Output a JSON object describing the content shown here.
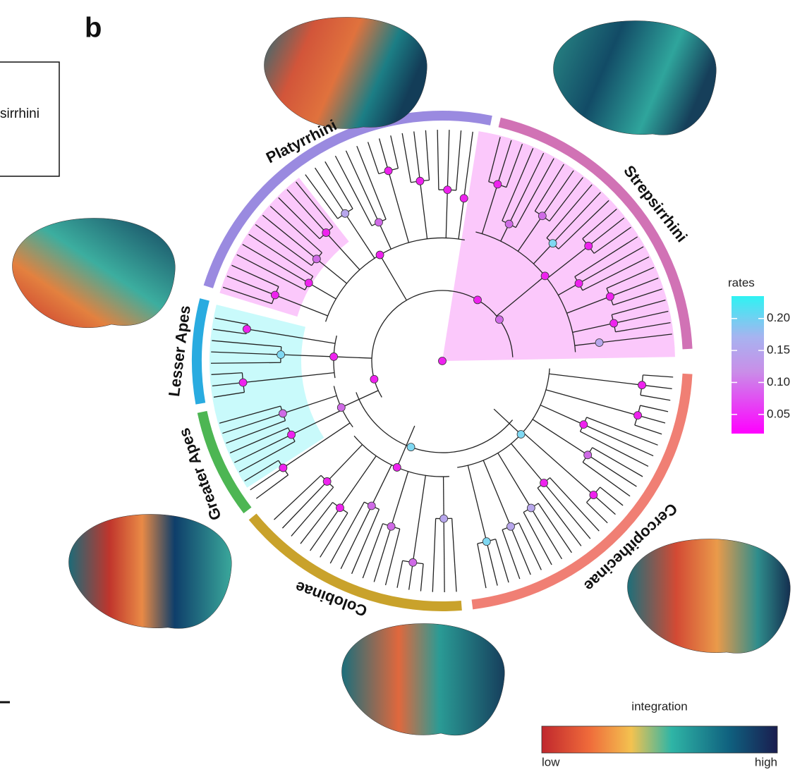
{
  "panel_label": "b",
  "left_panel": {
    "box_text": "sirrhini"
  },
  "clades": [
    "Platyrrhini",
    "Strepsirrhini",
    "Lesser Apes",
    "Greater Apes",
    "Colobinae",
    "Cercopithecinae"
  ],
  "rates_legend": {
    "title": "rates",
    "lim": [
      0.02,
      0.235
    ],
    "ticks": [
      {
        "value": 0.2,
        "label": "0.20"
      },
      {
        "value": 0.15,
        "label": "0.15"
      },
      {
        "value": 0.1,
        "label": "0.10"
      },
      {
        "value": 0.05,
        "label": "0.05"
      }
    ]
  },
  "integration_legend": {
    "title": "integration",
    "low": "low",
    "high": "high"
  }
}
